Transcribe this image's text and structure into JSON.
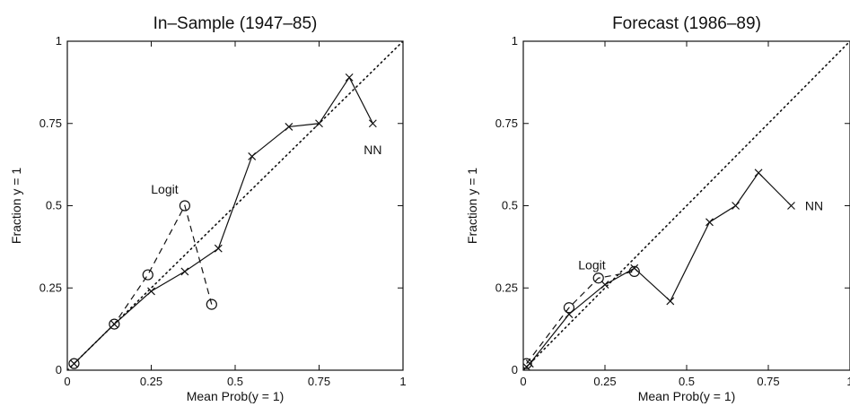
{
  "chart_data": [
    {
      "type": "line",
      "title": "In–Sample (1947–85)",
      "xlabel": "Mean Prob(y = 1)",
      "ylabel": "Fraction y = 1",
      "xlim": [
        0,
        1
      ],
      "ylim": [
        0,
        1
      ],
      "xticks": [
        "0",
        "0.25",
        "0.5",
        "0.75",
        "1"
      ],
      "yticks": [
        "0",
        "0.25",
        "0.5",
        "0.75",
        "1"
      ],
      "grid": false,
      "reference_line": {
        "style": "dotted",
        "from": [
          0,
          0
        ],
        "to": [
          1,
          1
        ]
      },
      "series": [
        {
          "name": "NN",
          "style": "solid",
          "marker": "x",
          "x": [
            0.02,
            0.14,
            0.25,
            0.35,
            0.45,
            0.55,
            0.66,
            0.75,
            0.84,
            0.91
          ],
          "y": [
            0.02,
            0.14,
            0.24,
            0.3,
            0.37,
            0.65,
            0.74,
            0.75,
            0.89,
            0.75
          ]
        },
        {
          "name": "Logit",
          "style": "dashed",
          "marker": "o",
          "x": [
            0.02,
            0.14,
            0.24,
            0.35,
            0.43
          ],
          "y": [
            0.02,
            0.14,
            0.29,
            0.5,
            0.2
          ]
        }
      ],
      "annotations": [
        {
          "text": "Logit",
          "x": 0.29,
          "y": 0.55
        },
        {
          "text": "NN",
          "x": 0.91,
          "y": 0.67
        }
      ]
    },
    {
      "type": "line",
      "title": "Forecast (1986–89)",
      "xlabel": "Mean Prob(y = 1)",
      "ylabel": "Fraction y = 1",
      "xlim": [
        0,
        1
      ],
      "ylim": [
        0,
        1
      ],
      "xticks": [
        "0",
        "0.25",
        "0.5",
        "0.75",
        "1"
      ],
      "yticks": [
        "0",
        "0.25",
        "0.5",
        "0.75",
        "1"
      ],
      "grid": false,
      "reference_line": {
        "style": "dotted",
        "from": [
          0,
          0
        ],
        "to": [
          1,
          1
        ]
      },
      "series": [
        {
          "name": "NN",
          "style": "solid",
          "marker": "x",
          "x": [
            0.01,
            0.02,
            0.14,
            0.25,
            0.34,
            0.45,
            0.57,
            0.65,
            0.72,
            0.82
          ],
          "y": [
            0.01,
            0.02,
            0.17,
            0.26,
            0.31,
            0.21,
            0.45,
            0.5,
            0.6,
            0.5
          ]
        },
        {
          "name": "Logit",
          "style": "dashed",
          "marker": "o",
          "x": [
            0.01,
            0.14,
            0.23,
            0.34
          ],
          "y": [
            0.02,
            0.19,
            0.28,
            0.3
          ]
        }
      ],
      "annotations": [
        {
          "text": "Logit",
          "x": 0.21,
          "y": 0.32
        },
        {
          "text": "NN",
          "x": 0.89,
          "y": 0.5
        }
      ]
    }
  ]
}
